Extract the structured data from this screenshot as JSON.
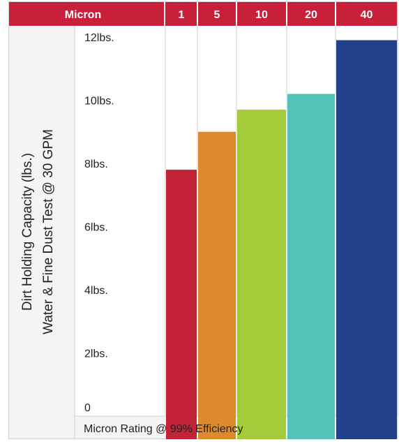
{
  "header": {
    "title": "Micron",
    "columns": [
      "1",
      "5",
      "10",
      "20",
      "40"
    ]
  },
  "chart_data": {
    "type": "bar",
    "categories": [
      "1",
      "5",
      "10",
      "20",
      "40"
    ],
    "values": [
      7.8,
      9.0,
      9.7,
      10.2,
      11.9
    ],
    "ylim": [
      0,
      12
    ],
    "y_ticks": [
      "0",
      "2lbs.",
      "4lbs.",
      "6lbs.",
      "8lbs.",
      "10lbs.",
      "12lbs."
    ],
    "ylabel": [
      "Dirt Holding Capacity (lbs.)",
      "Water & Fine Dust Test @ 30 GPM"
    ],
    "xlabel": "Micron Rating @ 99% Efficiency",
    "bar_colors": [
      "#c22336",
      "#de8a2c",
      "#a6cb3a",
      "#53c2b9",
      "#22418b"
    ],
    "header_color": "#c8203a",
    "side_panel_color": "#f4f4f4"
  }
}
